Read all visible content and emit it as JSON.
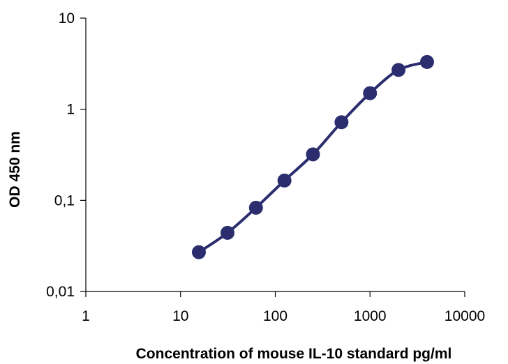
{
  "chart_data": {
    "type": "line",
    "xlabel": "Concentration of mouse IL-10 standard pg/ml",
    "ylabel": "OD 450 nm",
    "x_scale": "log",
    "y_scale": "log",
    "xlim": [
      1,
      10000
    ],
    "ylim": [
      0.01,
      10
    ],
    "x_ticks": [
      "1",
      "10",
      "100",
      "1000",
      "10000"
    ],
    "x_tick_values": [
      1,
      10,
      100,
      1000,
      10000
    ],
    "y_ticks": [
      "0,01",
      "0,1",
      "1",
      "10"
    ],
    "y_tick_values": [
      0.01,
      0.1,
      1,
      10
    ],
    "grid": false,
    "legend": "none",
    "series": [
      {
        "color": "#2b2d6e",
        "x": [
          15.6,
          31.3,
          62.5,
          125,
          250,
          500,
          1000,
          2000,
          4000
        ],
        "y": [
          0.027,
          0.044,
          0.083,
          0.165,
          0.32,
          0.72,
          1.5,
          2.7,
          3.3
        ]
      }
    ]
  }
}
